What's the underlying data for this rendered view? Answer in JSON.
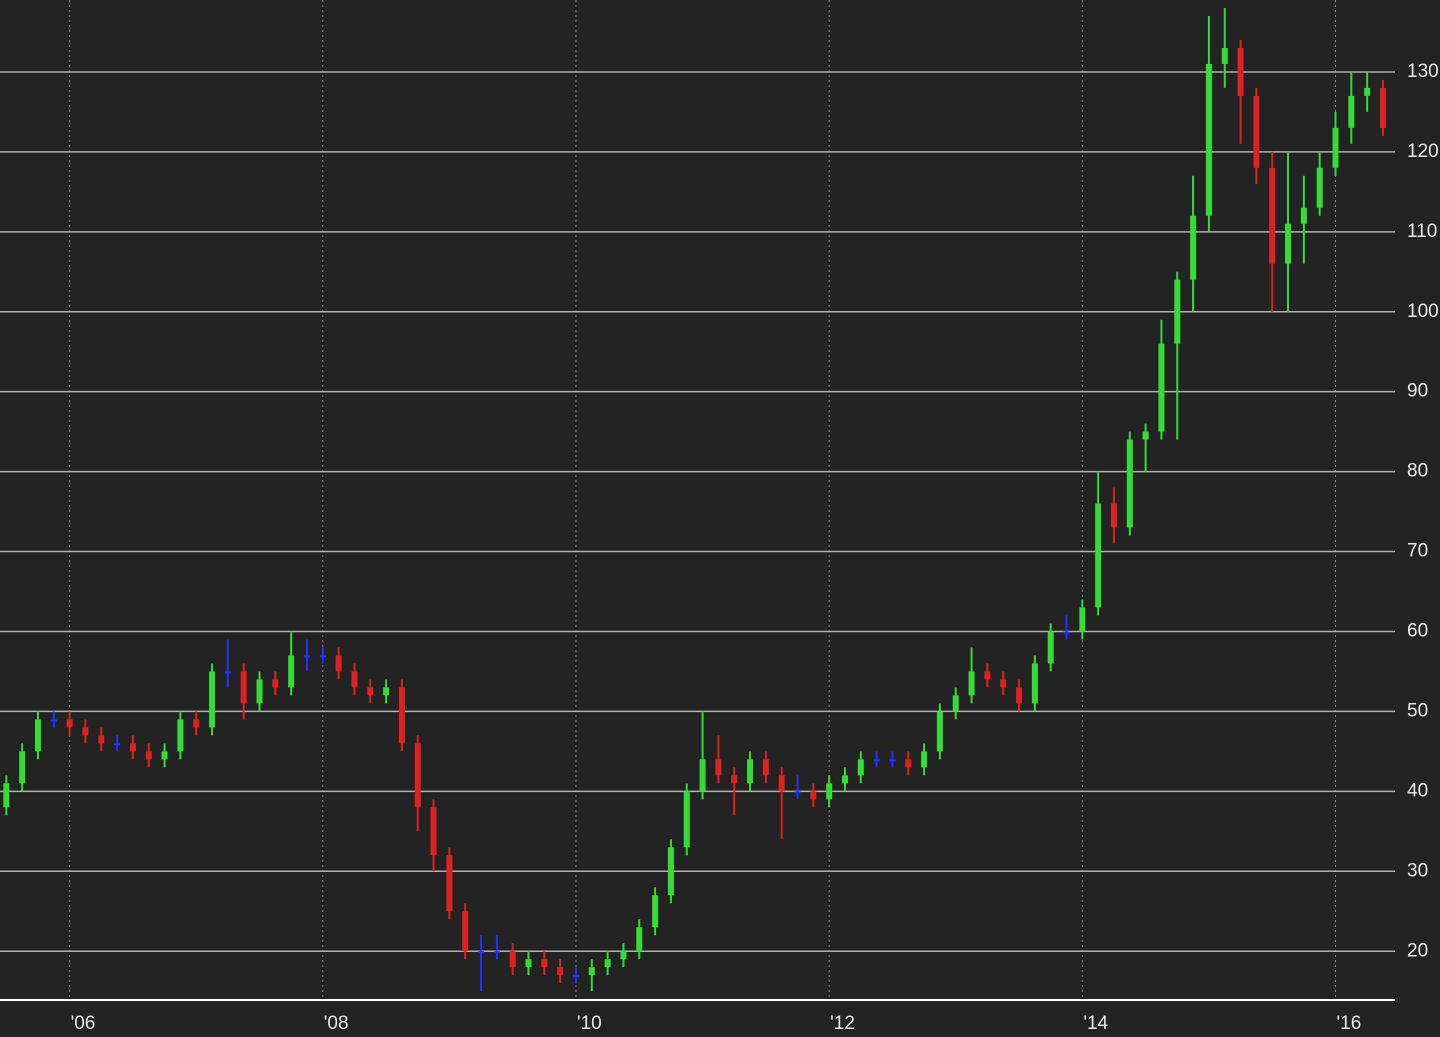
{
  "chart_data": {
    "type": "candlestick",
    "x": [
      2005.5,
      2005.625,
      2005.75,
      2005.875,
      2006,
      2006.125,
      2006.25,
      2006.375,
      2006.5,
      2006.625,
      2006.75,
      2006.875,
      2007,
      2007.125,
      2007.25,
      2007.375,
      2007.5,
      2007.625,
      2007.75,
      2007.875,
      2008,
      2008.125,
      2008.25,
      2008.375,
      2008.5,
      2008.625,
      2008.75,
      2008.875,
      2009,
      2009.125,
      2009.25,
      2009.375,
      2009.5,
      2009.625,
      2009.75,
      2009.875,
      2010,
      2010.125,
      2010.25,
      2010.375,
      2010.5,
      2010.625,
      2010.75,
      2010.875,
      2011,
      2011.125,
      2011.25,
      2011.375,
      2011.5,
      2011.625,
      2011.75,
      2011.875,
      2012,
      2012.125,
      2012.25,
      2012.375,
      2012.5,
      2012.625,
      2012.75,
      2012.875,
      2013,
      2013.125,
      2013.25,
      2013.375,
      2013.5,
      2013.625,
      2013.75,
      2013.875,
      2014,
      2014.125,
      2014.25,
      2014.375,
      2014.5,
      2014.625,
      2014.75,
      2014.875,
      2015,
      2015.125,
      2015.25,
      2015.375,
      2015.5,
      2015.625,
      2015.75,
      2015.875,
      2016,
      2016.125,
      2016.25,
      2016.375
    ],
    "open": [
      38,
      41,
      45,
      49,
      49,
      48,
      47,
      46,
      46,
      45,
      44,
      45,
      49,
      48,
      55,
      55,
      51,
      54,
      53,
      57,
      57,
      57,
      55,
      53,
      52,
      53,
      46,
      38,
      32,
      25,
      20,
      20,
      20,
      18,
      19,
      18,
      17,
      17,
      18,
      19,
      20,
      23,
      27,
      33,
      40,
      44,
      42,
      41,
      44,
      42,
      40,
      40,
      39,
      41,
      42,
      44,
      44,
      44,
      43,
      45,
      50,
      52,
      55,
      54,
      53,
      51,
      56,
      60,
      60,
      63,
      76,
      73,
      84,
      85,
      96,
      104,
      112,
      131,
      133,
      127,
      118,
      106,
      111,
      113,
      118,
      123,
      127,
      128
    ],
    "high": [
      42,
      46,
      50,
      50,
      50,
      49,
      48,
      47,
      47,
      46,
      46,
      50,
      50,
      56,
      59,
      56,
      55,
      55,
      60,
      59,
      58,
      58,
      56,
      54,
      54,
      54,
      47,
      39,
      33,
      26,
      22,
      22,
      21,
      20,
      20,
      19,
      18,
      19,
      20,
      21,
      24,
      28,
      34,
      41,
      50,
      47,
      43,
      45,
      45,
      43,
      42,
      41,
      42,
      43,
      45,
      45,
      45,
      45,
      46,
      51,
      53,
      58,
      56,
      55,
      54,
      57,
      61,
      62,
      64,
      80,
      78,
      85,
      86,
      99,
      105,
      117,
      137,
      138,
      134,
      128,
      120,
      120,
      117,
      120,
      125,
      130,
      130,
      129
    ],
    "low": [
      37,
      40,
      44,
      48,
      47,
      46,
      45,
      45,
      44,
      43,
      43,
      44,
      47,
      47,
      53,
      49,
      50,
      52,
      52,
      55,
      56,
      54,
      52,
      51,
      51,
      45,
      35,
      30,
      24,
      19,
      15,
      19,
      17,
      17,
      17,
      16,
      16,
      15,
      17,
      18,
      19,
      22,
      26,
      32,
      39,
      41,
      37,
      40,
      41,
      34,
      39,
      38,
      38,
      40,
      41,
      43,
      43,
      42,
      42,
      44,
      49,
      51,
      53,
      52,
      50,
      50,
      55,
      59,
      59,
      62,
      71,
      72,
      80,
      84,
      84,
      100,
      110,
      128,
      121,
      116,
      100,
      100,
      106,
      112,
      117,
      121,
      125,
      122
    ],
    "close": [
      41,
      45,
      49,
      49,
      48,
      47,
      46,
      46,
      45,
      44,
      45,
      49,
      48,
      55,
      55,
      51,
      54,
      53,
      57,
      57,
      57,
      55,
      53,
      52,
      53,
      46,
      38,
      32,
      25,
      20,
      20,
      20,
      18,
      19,
      18,
      17,
      17,
      18,
      19,
      20,
      23,
      27,
      33,
      40,
      44,
      42,
      41,
      44,
      42,
      40,
      40,
      39,
      41,
      42,
      44,
      44,
      44,
      43,
      45,
      50,
      52,
      55,
      54,
      53,
      51,
      56,
      60,
      60,
      63,
      76,
      73,
      84,
      85,
      96,
      104,
      112,
      131,
      133,
      127,
      118,
      106,
      111,
      113,
      118,
      123,
      127,
      128,
      123
    ],
    "up_color": "#33dd33",
    "down_color": "#dd2222",
    "flat_color": "#2233ff",
    "xlim": [
      2005.45,
      2016.47
    ],
    "xticks": [
      {
        "value": 2006,
        "label": "'06"
      },
      {
        "value": 2008,
        "label": "'08"
      },
      {
        "value": 2010,
        "label": "'10"
      },
      {
        "value": 2012,
        "label": "'12"
      },
      {
        "value": 2014,
        "label": "'14"
      },
      {
        "value": 2016,
        "label": "'16"
      }
    ],
    "ylim": [
      13.9,
      139
    ],
    "yticks": [
      20,
      30,
      40,
      50,
      60,
      70,
      80,
      90,
      100,
      110,
      120,
      130
    ],
    "grid": true
  }
}
